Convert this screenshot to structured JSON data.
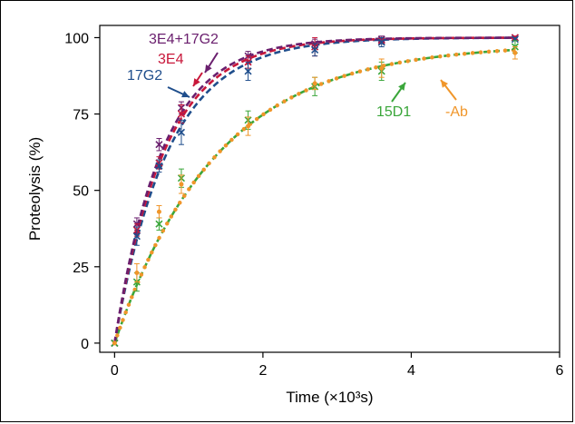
{
  "chart_data": {
    "type": "line",
    "xlabel": "Time (×10³s)",
    "ylabel": "Proteolysis (%)",
    "xlim": [
      -0.2,
      6
    ],
    "ylim": [
      -3,
      104
    ],
    "xticks": [
      0,
      2,
      4,
      6
    ],
    "yticks": [
      0,
      25,
      50,
      75,
      100
    ],
    "grid": false,
    "series": [
      {
        "name": "3E4+17G2",
        "color": "#6a1f6e",
        "marker": "x",
        "fit": {
          "rate": 1.55,
          "plateau": 100
        },
        "x": [
          0,
          0.3,
          0.6,
          0.9,
          1.8,
          2.7,
          3.6,
          5.4
        ],
        "y": [
          0,
          39,
          65,
          77,
          94,
          98,
          99.5,
          100
        ],
        "err": [
          0,
          2,
          2,
          2,
          1.5,
          1.5,
          1,
          0.5
        ]
      },
      {
        "name": "3E4",
        "color": "#c8173a",
        "marker": "x",
        "fit": {
          "rate": 1.48,
          "plateau": 100
        },
        "x": [
          0,
          0.3,
          0.6,
          0.9,
          1.8,
          2.7,
          3.6,
          5.4
        ],
        "y": [
          0,
          37,
          59,
          75,
          92,
          97,
          99,
          100
        ],
        "err": [
          0,
          2,
          2,
          3,
          2,
          3,
          1,
          0.5
        ]
      },
      {
        "name": "17G2",
        "color": "#1f4e8c",
        "marker": "x",
        "fit": {
          "rate": 1.38,
          "plateau": 100
        },
        "x": [
          0,
          0.3,
          0.6,
          0.9,
          1.8,
          2.7,
          3.6,
          5.4
        ],
        "y": [
          0,
          35,
          58,
          69,
          89,
          96,
          98.5,
          99.5
        ],
        "err": [
          0,
          3,
          2,
          4,
          3,
          2,
          1.5,
          0.5
        ]
      },
      {
        "name": "15D1",
        "color": "#3aa63a",
        "marker": "x",
        "fit": {
          "rate": 0.72,
          "plateau": 98
        },
        "x": [
          0,
          0.3,
          0.6,
          0.9,
          1.8,
          2.7,
          3.6,
          5.4
        ],
        "y": [
          0,
          20,
          39,
          54,
          73,
          84,
          89,
          97
        ],
        "err": [
          0,
          3,
          2,
          3,
          3,
          3,
          3,
          2
        ]
      },
      {
        "name": "-Ab",
        "color": "#f0962a",
        "marker": "dot",
        "fit": {
          "rate": 0.72,
          "plateau": 98
        },
        "x": [
          0,
          0.3,
          0.6,
          0.9,
          1.8,
          2.7,
          3.6,
          5.4
        ],
        "y": [
          0,
          23,
          43,
          52,
          71,
          85,
          90,
          95
        ],
        "err": [
          0,
          3,
          2,
          3,
          3,
          2,
          3,
          2
        ]
      }
    ],
    "annotations": [
      {
        "text": "3E4+17G2",
        "color": "#6a1f6e"
      },
      {
        "text": "3E4",
        "color": "#c8173a"
      },
      {
        "text": "17G2",
        "color": "#1f4e8c"
      },
      {
        "text": "15D1",
        "color": "#3aa63a"
      },
      {
        "text": "-Ab",
        "color": "#f0962a"
      }
    ]
  }
}
